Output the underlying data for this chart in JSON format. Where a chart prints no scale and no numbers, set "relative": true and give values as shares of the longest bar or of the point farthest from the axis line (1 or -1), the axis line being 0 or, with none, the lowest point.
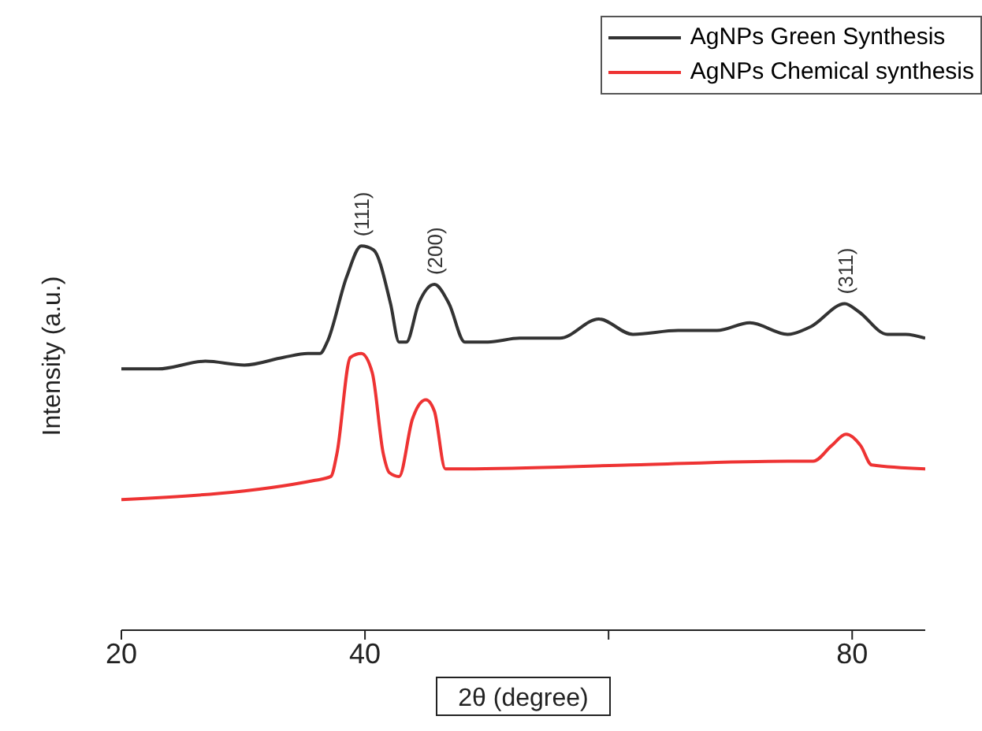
{
  "chart_data": {
    "type": "line",
    "relative": true,
    "xlabel": "2θ (degree)",
    "ylabel": "Intensity (a.u.)",
    "xlim": [
      20,
      86
    ],
    "xticks": [
      20,
      40,
      {
        "value": 60,
        "label": null
      },
      80
    ],
    "legend": "top right",
    "grid": false,
    "marker": "none",
    "line_style": "solid",
    "annotations": [
      {
        "text": "(111)",
        "x": 39.7,
        "y": 1.0
      },
      {
        "text": "(200)",
        "x": 45.7,
        "y": 0.9
      },
      {
        "text": "(311)",
        "x": 79.4,
        "y": 0.85
      }
    ],
    "series": [
      {
        "name": "AgNPs Green Synthesis",
        "color": "#333333",
        "x": [
          20,
          23,
          26.9,
          30.1,
          33.3,
          35.3,
          36.3,
          36.9,
          38.5,
          39.7,
          40.7,
          42.1,
          42.8,
          43.4,
          44.4,
          45.7,
          46.9,
          48.2,
          50.1,
          52.7,
          56,
          59.2,
          62,
          65.7,
          68.9,
          71.6,
          74.7,
          76.6,
          79.4,
          80.5,
          82.9,
          84.4,
          86
        ],
        "values": [
          0.68,
          0.68,
          0.7,
          0.69,
          0.71,
          0.72,
          0.72,
          0.75,
          0.92,
          1.0,
          0.99,
          0.85,
          0.75,
          0.75,
          0.85,
          0.9,
          0.85,
          0.75,
          0.75,
          0.76,
          0.76,
          0.81,
          0.77,
          0.78,
          0.78,
          0.8,
          0.77,
          0.79,
          0.85,
          0.83,
          0.77,
          0.77,
          0.76
        ]
      },
      {
        "name": "AgNPs Chemical synthesis",
        "color": "#ee3333",
        "x": [
          20,
          35.9,
          37.2,
          37.7,
          38.8,
          39.7,
          40.6,
          41.5,
          42,
          42.8,
          43.9,
          45,
          45.7,
          46.6,
          48.2,
          61.8,
          74.7,
          76.8,
          78.3,
          79.5,
          80.7,
          81.6,
          86
        ],
        "values": [
          0.34,
          0.39,
          0.4,
          0.46,
          0.71,
          0.72,
          0.67,
          0.46,
          0.41,
          0.4,
          0.55,
          0.6,
          0.57,
          0.42,
          0.42,
          0.43,
          0.44,
          0.44,
          0.48,
          0.51,
          0.48,
          0.43,
          0.42
        ]
      }
    ]
  }
}
